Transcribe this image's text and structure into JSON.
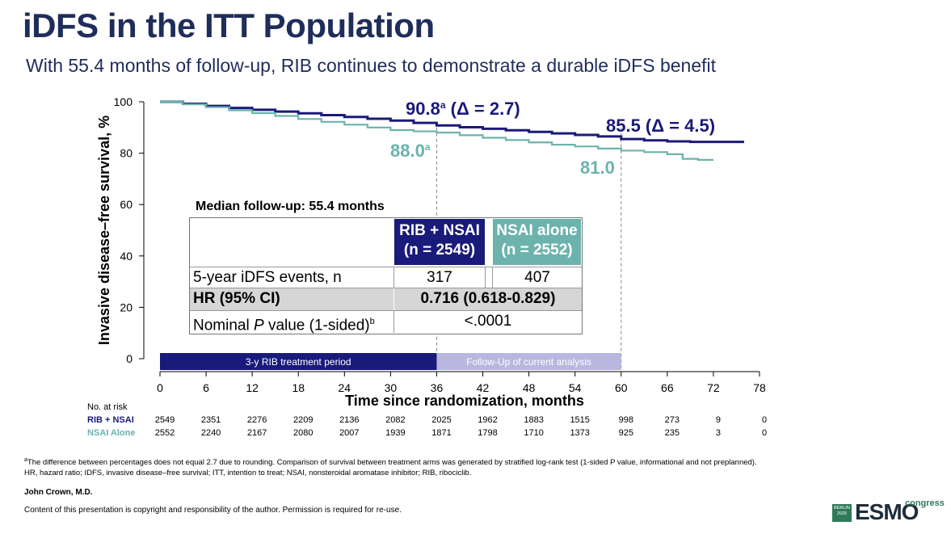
{
  "header": {
    "title": "iDFS in the ITT Population",
    "subtitle": "With 55.4 months of follow-up, RIB continues to demonstrate a durable iDFS benefit"
  },
  "colors": {
    "rib": "#1a1a7a",
    "nsai": "#6cb3ad",
    "title": "#1f2d5a",
    "followup": "#b9b6df",
    "header_rib": "#1a1a7a",
    "header_nsai": "#6cb3ad"
  },
  "chart_data": {
    "type": "line",
    "title": "iDFS in the ITT Population",
    "xlabel": "Time since randomization, months",
    "ylabel": "Invasive disease–free survival, %",
    "xlim": [
      0,
      78
    ],
    "ylim": [
      0,
      100
    ],
    "xticks": [
      0,
      6,
      12,
      18,
      24,
      30,
      36,
      42,
      48,
      54,
      60,
      66,
      72,
      78
    ],
    "yticks": [
      0,
      20,
      40,
      60,
      80,
      100
    ],
    "series": [
      {
        "name": "RIB + NSAI",
        "x": [
          0,
          3,
          6,
          9,
          12,
          15,
          18,
          21,
          24,
          27,
          30,
          33,
          36,
          39,
          42,
          45,
          48,
          51,
          54,
          57,
          60,
          63,
          66,
          69,
          72,
          76
        ],
        "y": [
          100,
          99.2,
          98.4,
          97.6,
          96.9,
          96.2,
          95.5,
          94.8,
          94.1,
          93.4,
          92.7,
          91.8,
          90.8,
          90.1,
          89.5,
          88.9,
          88.3,
          87.7,
          87.1,
          86.5,
          85.5,
          85.0,
          84.6,
          84.4,
          84.4,
          84.4
        ]
      },
      {
        "name": "NSAI alone",
        "x": [
          0,
          3,
          6,
          9,
          12,
          15,
          18,
          21,
          24,
          27,
          30,
          33,
          36,
          39,
          42,
          45,
          48,
          51,
          54,
          57,
          60,
          63,
          66,
          68,
          70,
          72
        ],
        "y": [
          100,
          99.0,
          97.9,
          96.7,
          95.6,
          94.5,
          93.3,
          92.2,
          91.1,
          90.0,
          89.0,
          88.5,
          88.0,
          87.0,
          86.0,
          85.1,
          84.2,
          83.3,
          82.6,
          81.8,
          81.0,
          80.4,
          79.6,
          77.8,
          77.4,
          77.4
        ]
      }
    ],
    "reference_lines": [
      36,
      60
    ],
    "annotations": {
      "rib_36": "90.8",
      "rib_36_sup": "a",
      "rib_36_delta": "(Δ = 2.7)",
      "nsai_36": "88.0",
      "nsai_36_sup": "a",
      "rib_60": "85.5",
      "rib_60_delta": "(Δ = 4.5)",
      "nsai_60": "81.0"
    },
    "bands": [
      {
        "label": "3-y RIB treatment period",
        "from": 0,
        "to": 36
      },
      {
        "label": "Follow-Up of current analysis",
        "from": 36,
        "to": 60
      }
    ]
  },
  "risk_table": {
    "title": "No. at risk",
    "rows": [
      {
        "label": "RIB + NSAI",
        "values": [
          "2549",
          "2351",
          "2276",
          "2209",
          "2136",
          "2082",
          "2025",
          "1962",
          "1883",
          "1515",
          "998",
          "273",
          "9",
          "0"
        ]
      },
      {
        "label": "NSAI Alone",
        "values": [
          "2552",
          "2240",
          "2167",
          "2080",
          "2007",
          "1939",
          "1871",
          "1798",
          "1710",
          "1373",
          "925",
          "235",
          "3",
          "0"
        ]
      }
    ]
  },
  "summary_table": {
    "median_followup": "Median follow-up: 55.4 months",
    "col1_line1": "RIB + NSAI",
    "col1_line2": "(n = 2549)",
    "col2_line1": "NSAI alone",
    "col2_line2": "(n = 2552)",
    "row1_label": "5-year iDFS events, n",
    "row1_rib": "317",
    "row1_nsai": "407",
    "row2_label": "HR (95% CI)",
    "row2_value": "0.716 (0.618-0.829)",
    "row3_label_pre": "Nominal ",
    "row3_label_italic": "P",
    "row3_label_post": " value (1-sided)",
    "row3_label_sup": "b",
    "row3_value": "<.0001"
  },
  "footer": {
    "footnote_line1": "The difference between percentages does not equal 2.7 due to rounding. Comparison of survival between treatment arms was generated by stratified log-rank test (1-sided P value, informational and not preplanned).",
    "footnote_line2": "HR, hazard ratio; IDFS, invasive disease–free survival; ITT, intention to treat; NSAI, nonsteroidal aromatase inhibitor; RIB, ribociclib.",
    "author": "John Crown, M.D.",
    "copyright": "Content of this presentation is copyright and responsibility of the author. Permission is required for re-use.",
    "logo_city": "BERLIN",
    "logo_year": "2025",
    "logo_name": "ESMO",
    "logo_suffix": "congress"
  }
}
